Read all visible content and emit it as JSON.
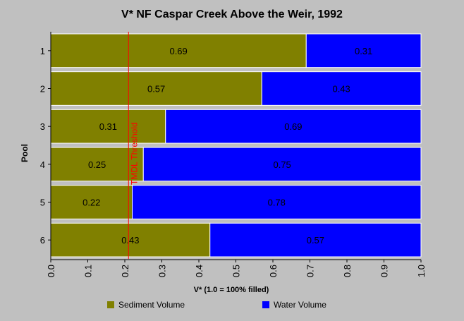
{
  "chart_data": {
    "type": "bar",
    "orientation": "horizontal",
    "stacked": true,
    "title": "V* NF Caspar Creek Above the Weir, 1992",
    "xlabel": "V* (1.0 = 100% filled)",
    "ylabel": "Pool",
    "categories": [
      "1",
      "2",
      "3",
      "4",
      "5",
      "6"
    ],
    "series": [
      {
        "name": "Sediment Volume",
        "color": "#808000",
        "values": [
          0.69,
          0.57,
          0.31,
          0.25,
          0.22,
          0.43
        ]
      },
      {
        "name": "Water Volume",
        "color": "#0000ff",
        "values": [
          0.31,
          0.43,
          0.69,
          0.75,
          0.78,
          0.57
        ]
      }
    ],
    "value_labels": {
      "sediment": [
        "0.69",
        "0.57",
        "0.31",
        "0.25",
        "0.22",
        "0.43"
      ],
      "water": [
        "0.31",
        "0.43",
        "0.69",
        "0.75",
        "0.78",
        "0.57"
      ]
    },
    "xlim": [
      0,
      1
    ],
    "xticks": [
      "0.0",
      "0.1",
      "0.2",
      "0.3",
      "0.4",
      "0.5",
      "0.6",
      "0.7",
      "0.8",
      "0.9",
      "1.0"
    ],
    "threshold": {
      "value": 0.21,
      "label": "TMDL Threshold",
      "color": "#ff0000"
    },
    "legend_placement": "bottom",
    "grid": false
  }
}
